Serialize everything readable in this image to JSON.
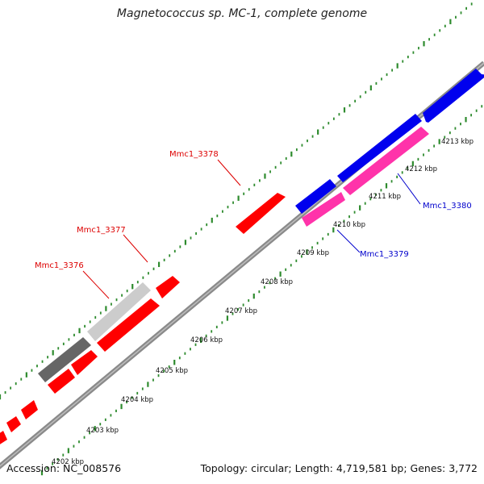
{
  "title": "Magnetococcus sp. MC-1, complete genome",
  "footer": {
    "accession": "Accession: NC_008576",
    "summary": "Topology: circular; Length: 4,719,581 bp; Genes: 3,772"
  },
  "colors": {
    "background": "#ffffff",
    "backbone": "#8a8a8a",
    "tick": "#2e8b2e",
    "red_gene": "#ff0000",
    "blue_gene": "#0000ee",
    "pink_gene": "#ff33aa",
    "light_gray_gene": "#cccccc",
    "dark_gray_gene": "#666666",
    "red_label": "#dd0000",
    "blue_label": "#0000cc"
  },
  "scale_labels": [
    "4203 kbp",
    "4204 kbp",
    "4205 kbp",
    "4206 kbp",
    "4207 kbp",
    "4208 kbp",
    "4209 kbp",
    "4210 kbp",
    "4211 kbp",
    "4212 kbp",
    "4213 kbp"
  ],
  "partial_scale_label": "4202 kbp",
  "gene_labels": [
    {
      "text": "Mmc1_3378",
      "color": "red"
    },
    {
      "text": "Mmc1_3377",
      "color": "red"
    },
    {
      "text": "Mmc1_3376",
      "color": "red"
    },
    {
      "text": "Mmc1_3380",
      "color": "blue"
    },
    {
      "text": "Mmc1_3379",
      "color": "blue"
    }
  ]
}
